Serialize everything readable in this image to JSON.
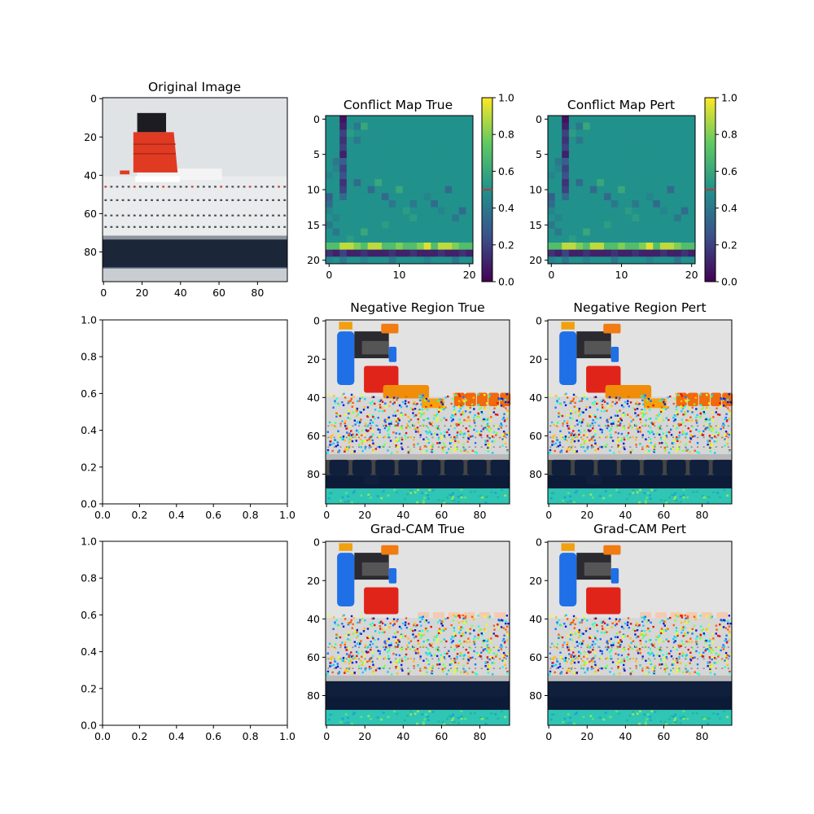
{
  "chart_data": [
    {
      "panel": "original",
      "type": "image",
      "title": "Original Image",
      "xticks": [
        0,
        20,
        40,
        60,
        80
      ],
      "yticks": [
        0,
        20,
        40,
        60,
        80
      ],
      "xlim": [
        -0.5,
        95.5
      ],
      "ylim": [
        95.5,
        -0.5
      ],
      "scene": {
        "sky": "#dfe3e6",
        "funnel_top": "#1c1c22",
        "funnel_red": "#e03a22",
        "superstructure": "#e9ebec",
        "hull": "#1b2638",
        "water": "#c9cdd2"
      }
    },
    {
      "panel": "conflict_true",
      "type": "heatmap",
      "title": "Conflict Map True",
      "xticks": [
        0,
        10,
        20
      ],
      "yticks": [
        0,
        5,
        10,
        15,
        20
      ],
      "grid_size": [
        21,
        21
      ],
      "base_value": 0.5,
      "colorbar": {
        "cmap": "viridis",
        "range": [
          0.0,
          1.0
        ],
        "ticks": [
          "0.0",
          "0.2",
          "0.4",
          "0.6",
          "0.8",
          "1.0"
        ],
        "marker": 0.5
      },
      "cells": [
        [
          0,
          2,
          0.05
        ],
        [
          1,
          2,
          0.1
        ],
        [
          2,
          2,
          0.2
        ],
        [
          3,
          2,
          0.15
        ],
        [
          4,
          2,
          0.2
        ],
        [
          5,
          2,
          0.1
        ],
        [
          6,
          2,
          0.3
        ],
        [
          7,
          2,
          0.2
        ],
        [
          8,
          2,
          0.25
        ],
        [
          9,
          2,
          0.15
        ],
        [
          10,
          2,
          0.2
        ],
        [
          11,
          2,
          0.35
        ],
        [
          1,
          4,
          0.4
        ],
        [
          2,
          3,
          0.55
        ],
        [
          1,
          5,
          0.6
        ],
        [
          3,
          4,
          0.4
        ],
        [
          6,
          1,
          0.4
        ],
        [
          7,
          1,
          0.45
        ],
        [
          8,
          0,
          0.45
        ],
        [
          11,
          0,
          0.3
        ],
        [
          12,
          0,
          0.35
        ],
        [
          13,
          0,
          0.45
        ],
        [
          14,
          1,
          0.45
        ],
        [
          15,
          0,
          0.4
        ],
        [
          16,
          1,
          0.4
        ],
        [
          9,
          4,
          0.35
        ],
        [
          10,
          6,
          0.35
        ],
        [
          11,
          8,
          0.35
        ],
        [
          12,
          9,
          0.4
        ],
        [
          10,
          10,
          0.6
        ],
        [
          12,
          12,
          0.4
        ],
        [
          11,
          14,
          0.45
        ],
        [
          12,
          15,
          0.35
        ],
        [
          13,
          16,
          0.45
        ],
        [
          14,
          18,
          0.4
        ],
        [
          13,
          19,
          0.35
        ],
        [
          10,
          17,
          0.35
        ],
        [
          9,
          7,
          0.6
        ],
        [
          13,
          11,
          0.55
        ],
        [
          14,
          12,
          0.55
        ],
        [
          15,
          8,
          0.55
        ],
        [
          16,
          5,
          0.6
        ],
        [
          17,
          3,
          0.55
        ],
        [
          18,
          0,
          0.7
        ],
        [
          18,
          1,
          0.7
        ],
        [
          18,
          2,
          0.9
        ],
        [
          18,
          3,
          0.9
        ],
        [
          18,
          4,
          0.8
        ],
        [
          18,
          5,
          0.7
        ],
        [
          18,
          6,
          0.9
        ],
        [
          18,
          7,
          0.9
        ],
        [
          18,
          8,
          0.7
        ],
        [
          18,
          9,
          0.7
        ],
        [
          18,
          10,
          0.8
        ],
        [
          18,
          11,
          0.7
        ],
        [
          18,
          12,
          0.7
        ],
        [
          18,
          13,
          0.8
        ],
        [
          18,
          14,
          0.95
        ],
        [
          18,
          15,
          0.7
        ],
        [
          18,
          16,
          0.9
        ],
        [
          18,
          17,
          0.9
        ],
        [
          18,
          18,
          0.8
        ],
        [
          18,
          19,
          0.7
        ],
        [
          18,
          20,
          0.7
        ],
        [
          19,
          0,
          0.15
        ],
        [
          19,
          1,
          0.1
        ],
        [
          19,
          2,
          0.2
        ],
        [
          19,
          3,
          0.1
        ],
        [
          19,
          4,
          0.1
        ],
        [
          19,
          5,
          0.15
        ],
        [
          19,
          6,
          0.1
        ],
        [
          19,
          7,
          0.1
        ],
        [
          19,
          8,
          0.1
        ],
        [
          19,
          9,
          0.15
        ],
        [
          19,
          10,
          0.1
        ],
        [
          19,
          11,
          0.1
        ],
        [
          19,
          12,
          0.15
        ],
        [
          19,
          13,
          0.1
        ],
        [
          19,
          14,
          0.1
        ],
        [
          19,
          15,
          0.1
        ],
        [
          19,
          16,
          0.15
        ],
        [
          19,
          17,
          0.1
        ],
        [
          19,
          18,
          0.1
        ],
        [
          19,
          19,
          0.15
        ],
        [
          19,
          20,
          0.1
        ],
        [
          20,
          0,
          0.45
        ],
        [
          20,
          2,
          0.4
        ],
        [
          20,
          5,
          0.45
        ],
        [
          20,
          9,
          0.4
        ],
        [
          20,
          14,
          0.45
        ],
        [
          20,
          18,
          0.4
        ]
      ]
    },
    {
      "panel": "conflict_pert",
      "type": "heatmap",
      "title": "Conflict Map Pert",
      "xticks": [
        0,
        10,
        20
      ],
      "yticks": [
        0,
        5,
        10,
        15,
        20
      ],
      "grid_size": [
        21,
        21
      ],
      "base_value": 0.5,
      "colorbar": {
        "cmap": "viridis",
        "range": [
          0.0,
          1.0
        ],
        "ticks": [
          "0.0",
          "0.2",
          "0.4",
          "0.6",
          "0.8",
          "1.0"
        ],
        "marker": 0.5
      },
      "cells": [
        [
          0,
          2,
          0.05
        ],
        [
          1,
          2,
          0.1
        ],
        [
          2,
          2,
          0.2
        ],
        [
          3,
          2,
          0.15
        ],
        [
          4,
          2,
          0.2
        ],
        [
          5,
          2,
          0.1
        ],
        [
          6,
          2,
          0.3
        ],
        [
          7,
          2,
          0.2
        ],
        [
          8,
          2,
          0.25
        ],
        [
          9,
          2,
          0.15
        ],
        [
          10,
          2,
          0.2
        ],
        [
          11,
          2,
          0.35
        ],
        [
          1,
          4,
          0.4
        ],
        [
          2,
          3,
          0.55
        ],
        [
          1,
          5,
          0.6
        ],
        [
          3,
          4,
          0.4
        ],
        [
          6,
          1,
          0.4
        ],
        [
          7,
          1,
          0.45
        ],
        [
          8,
          0,
          0.45
        ],
        [
          11,
          0,
          0.3
        ],
        [
          12,
          0,
          0.35
        ],
        [
          13,
          0,
          0.45
        ],
        [
          14,
          1,
          0.45
        ],
        [
          15,
          0,
          0.4
        ],
        [
          16,
          1,
          0.4
        ],
        [
          9,
          4,
          0.35
        ],
        [
          10,
          6,
          0.35
        ],
        [
          11,
          8,
          0.35
        ],
        [
          12,
          9,
          0.4
        ],
        [
          10,
          10,
          0.6
        ],
        [
          12,
          12,
          0.4
        ],
        [
          11,
          14,
          0.45
        ],
        [
          12,
          15,
          0.35
        ],
        [
          13,
          16,
          0.45
        ],
        [
          14,
          18,
          0.4
        ],
        [
          13,
          19,
          0.35
        ],
        [
          10,
          17,
          0.35
        ],
        [
          9,
          7,
          0.6
        ],
        [
          13,
          11,
          0.55
        ],
        [
          14,
          12,
          0.55
        ],
        [
          15,
          8,
          0.55
        ],
        [
          16,
          5,
          0.6
        ],
        [
          17,
          3,
          0.55
        ],
        [
          18,
          0,
          0.7
        ],
        [
          18,
          1,
          0.7
        ],
        [
          18,
          2,
          0.9
        ],
        [
          18,
          3,
          0.9
        ],
        [
          18,
          4,
          0.8
        ],
        [
          18,
          5,
          0.7
        ],
        [
          18,
          6,
          0.9
        ],
        [
          18,
          7,
          0.9
        ],
        [
          18,
          8,
          0.7
        ],
        [
          18,
          9,
          0.7
        ],
        [
          18,
          10,
          0.8
        ],
        [
          18,
          11,
          0.7
        ],
        [
          18,
          12,
          0.7
        ],
        [
          18,
          13,
          0.8
        ],
        [
          18,
          14,
          0.95
        ],
        [
          18,
          15,
          0.7
        ],
        [
          18,
          16,
          0.9
        ],
        [
          18,
          17,
          0.9
        ],
        [
          18,
          18,
          0.8
        ],
        [
          18,
          19,
          0.7
        ],
        [
          18,
          20,
          0.7
        ],
        [
          19,
          0,
          0.15
        ],
        [
          19,
          1,
          0.1
        ],
        [
          19,
          2,
          0.2
        ],
        [
          19,
          3,
          0.1
        ],
        [
          19,
          4,
          0.1
        ],
        [
          19,
          5,
          0.15
        ],
        [
          19,
          6,
          0.1
        ],
        [
          19,
          7,
          0.1
        ],
        [
          19,
          8,
          0.1
        ],
        [
          19,
          9,
          0.15
        ],
        [
          19,
          10,
          0.1
        ],
        [
          19,
          11,
          0.1
        ],
        [
          19,
          12,
          0.15
        ],
        [
          19,
          13,
          0.1
        ],
        [
          19,
          14,
          0.1
        ],
        [
          19,
          15,
          0.1
        ],
        [
          19,
          16,
          0.15
        ],
        [
          19,
          17,
          0.1
        ],
        [
          19,
          18,
          0.1
        ],
        [
          19,
          19,
          0.15
        ],
        [
          19,
          20,
          0.1
        ],
        [
          20,
          0,
          0.45
        ],
        [
          20,
          2,
          0.4
        ],
        [
          20,
          5,
          0.45
        ],
        [
          20,
          9,
          0.4
        ],
        [
          20,
          14,
          0.45
        ],
        [
          20,
          18,
          0.4
        ]
      ]
    },
    {
      "panel": "empty_1",
      "type": "empty",
      "xticks": [
        "0.0",
        "0.2",
        "0.4",
        "0.6",
        "0.8",
        "1.0"
      ],
      "yticks": [
        "0.0",
        "0.2",
        "0.4",
        "0.6",
        "0.8",
        "1.0"
      ],
      "xlim": [
        0,
        1
      ],
      "ylim": [
        0,
        1
      ]
    },
    {
      "panel": "negative_true",
      "type": "image",
      "title": "Negative Region True",
      "xticks": [
        0,
        20,
        40,
        60,
        80
      ],
      "yticks": [
        0,
        20,
        40,
        60,
        80
      ],
      "xlim": [
        -0.5,
        95.5
      ],
      "ylim": [
        95.5,
        -0.5
      ]
    },
    {
      "panel": "negative_pert",
      "type": "image",
      "title": "Negative Region Pert",
      "xticks": [
        0,
        20,
        40,
        60,
        80
      ],
      "yticks": [
        0,
        20,
        40,
        60,
        80
      ],
      "xlim": [
        -0.5,
        95.5
      ],
      "ylim": [
        95.5,
        -0.5
      ]
    },
    {
      "panel": "empty_2",
      "type": "empty",
      "xticks": [
        "0.0",
        "0.2",
        "0.4",
        "0.6",
        "0.8",
        "1.0"
      ],
      "yticks": [
        "0.0",
        "0.2",
        "0.4",
        "0.6",
        "0.8",
        "1.0"
      ],
      "xlim": [
        0,
        1
      ],
      "ylim": [
        0,
        1
      ]
    },
    {
      "panel": "gradcam_true",
      "type": "image",
      "title": "Grad-CAM True",
      "xticks": [
        0,
        20,
        40,
        60,
        80
      ],
      "yticks": [
        0,
        20,
        40,
        60,
        80
      ],
      "xlim": [
        -0.5,
        95.5
      ],
      "ylim": [
        95.5,
        -0.5
      ]
    },
    {
      "panel": "gradcam_pert",
      "type": "image",
      "title": "Grad-CAM Pert",
      "xticks": [
        0,
        20,
        40,
        60,
        80
      ],
      "yticks": [
        0,
        20,
        40,
        60,
        80
      ],
      "xlim": [
        -0.5,
        95.5
      ],
      "ylim": [
        95.5,
        -0.5
      ]
    }
  ]
}
